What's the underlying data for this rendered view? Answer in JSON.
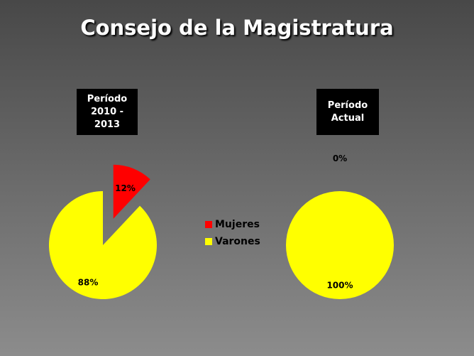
{
  "title": "Consejo de la Magistratura",
  "chart_data": [
    {
      "type": "pie",
      "title": "Período\n2010  - 2013",
      "categories": [
        "Mujeres",
        "Varones"
      ],
      "values": [
        12,
        88
      ],
      "value_labels": [
        "12%",
        "88%"
      ],
      "colors": [
        "#ff0000",
        "#ffff00"
      ],
      "exploded": [
        "Mujeres"
      ]
    },
    {
      "type": "pie",
      "title": "Período\nActual",
      "categories": [
        "Mujeres",
        "Varones"
      ],
      "values": [
        0,
        100
      ],
      "value_labels": [
        "0%",
        "100%"
      ],
      "colors": [
        "#ff0000",
        "#ffff00"
      ]
    }
  ]
}
